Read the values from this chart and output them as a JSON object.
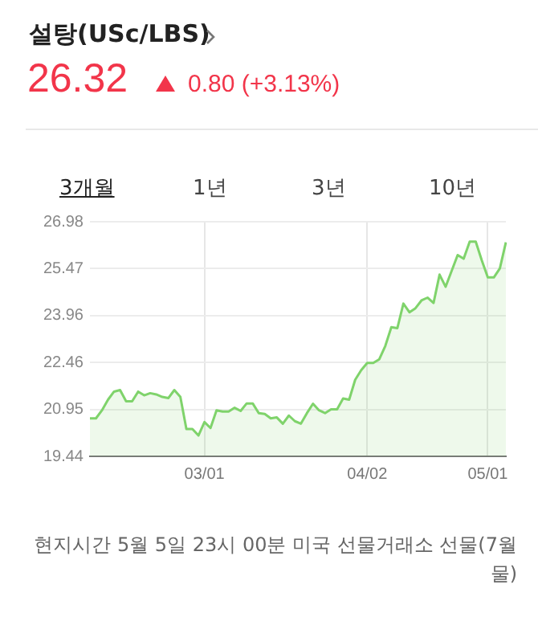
{
  "chart_data": {
    "type": "area",
    "title": "설탕(USc/LBS)",
    "subtitle": "26.32",
    "annotations": [
      "0.80",
      "(+3.13%)",
      "3개월",
      "1년",
      "3년",
      "10년",
      "현지시간 5월 5일 23시 00분 미국 선물거래소 선물(7월물)"
    ],
    "categories": [
      null,
      null,
      null,
      null,
      null,
      null,
      null,
      null,
      null,
      null,
      null,
      null,
      null,
      null,
      null,
      null,
      null,
      null,
      null,
      "03/01",
      null,
      null,
      null,
      null,
      null,
      null,
      null,
      null,
      null,
      null,
      null,
      null,
      null,
      null,
      null,
      null,
      null,
      null,
      null,
      null,
      null,
      null,
      null,
      null,
      null,
      null,
      "04/02",
      null,
      null,
      null,
      null,
      null,
      null,
      null,
      null,
      null,
      null,
      null,
      null,
      null,
      null,
      null,
      null,
      null,
      null,
      null,
      "05/01",
      null,
      null,
      null
    ],
    "series": [
      {
        "color": "#7fd36b",
        "values": [
          20.66,
          20.66,
          20.92,
          21.26,
          21.52,
          21.57,
          21.21,
          21.21,
          21.52,
          21.4,
          21.47,
          21.43,
          21.35,
          21.31,
          21.57,
          21.35,
          20.32,
          20.32,
          20.11,
          20.54,
          20.35,
          20.92,
          20.88,
          20.88,
          21.0,
          20.9,
          21.14,
          21.14,
          20.83,
          20.8,
          20.66,
          20.69,
          20.49,
          20.75,
          20.57,
          20.49,
          20.83,
          21.13,
          20.92,
          20.83,
          20.95,
          20.95,
          21.3,
          21.26,
          21.9,
          22.21,
          22.44,
          22.44,
          22.56,
          22.99,
          23.59,
          23.56,
          24.35,
          24.07,
          24.2,
          24.45,
          24.54,
          24.37,
          25.28,
          24.89,
          25.4,
          25.91,
          25.79,
          26.34,
          26.34,
          25.74,
          25.19,
          25.19,
          25.48,
          26.32
        ]
      }
    ],
    "ylim": [
      19.44,
      26.98
    ],
    "yticks": [
      19.44,
      20.95,
      22.46,
      23.96,
      25.47,
      26.98
    ],
    "grid": true
  }
}
